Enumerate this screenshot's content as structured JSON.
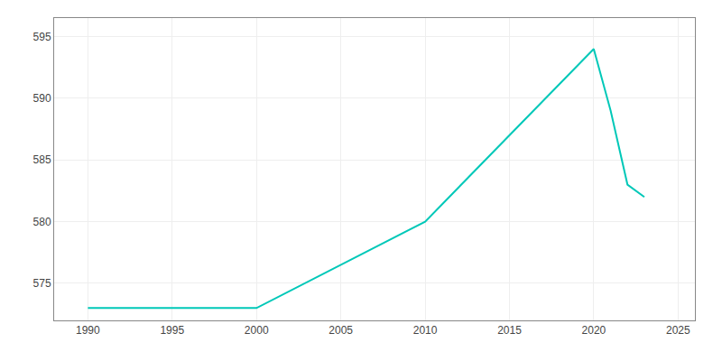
{
  "chart_data": {
    "type": "line",
    "x": [
      1990,
      2000,
      2010,
      2020,
      2021,
      2022,
      2023
    ],
    "values": [
      573,
      573,
      580,
      594,
      589,
      583,
      582
    ],
    "color": "#00c8b8",
    "xlim": [
      1988,
      2026
    ],
    "xticks": [
      1990,
      1995,
      2000,
      2005,
      2010,
      2015,
      2020,
      2025
    ],
    "ylim": [
      572,
      596.5
    ],
    "yticks": [
      575,
      580,
      585,
      590,
      595
    ],
    "grid": true
  }
}
